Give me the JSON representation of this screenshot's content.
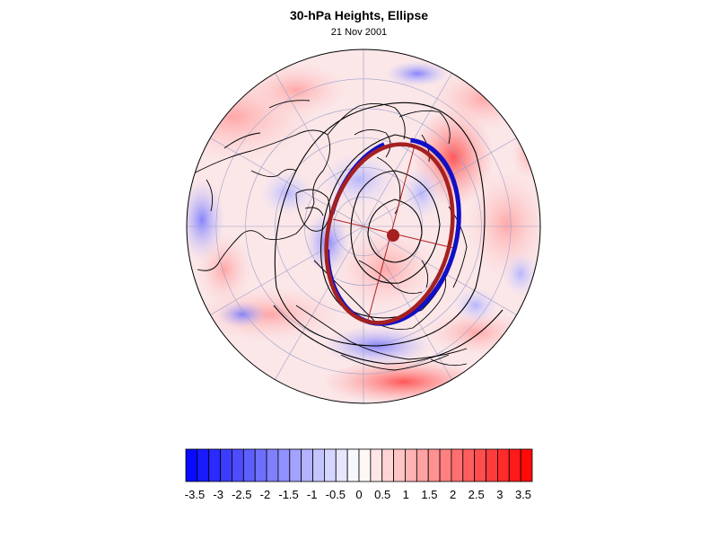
{
  "title": "30-hPa Heights, Ellipse",
  "subtitle": "21 Nov 2001",
  "colors": {
    "negative": "#0000ff",
    "positive": "#ff0000",
    "ellipse_analysis": "#1010c8",
    "ellipse_fit": "#a52020",
    "contour": "#000000"
  },
  "colorbar": {
    "min": -3.5,
    "max": 3.5,
    "levels": 30,
    "tick_labels": [
      "-3.5",
      "-3",
      "-2.5",
      "-2",
      "-1.5",
      "-1",
      "-0.5",
      "0",
      "0.5",
      "1",
      "1.5",
      "2",
      "2.5",
      "3",
      "3.5"
    ],
    "tick_values": [
      -3.5,
      -3,
      -2.5,
      -2,
      -1.5,
      -1,
      -0.5,
      0,
      0.5,
      1,
      1.5,
      2,
      2.5,
      3,
      3.5
    ]
  }
}
